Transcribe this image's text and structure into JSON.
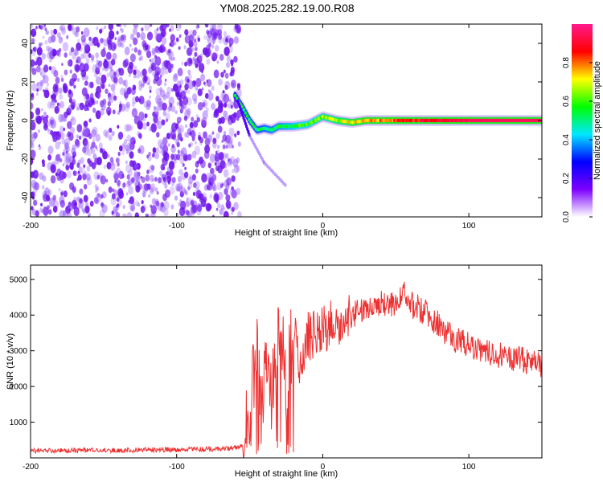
{
  "title": "YM08.2025.282.19.00.R08",
  "chart_data": [
    {
      "type": "heatmap",
      "xlabel": "Height of straight line (km)",
      "ylabel": "Frequency (Hz)",
      "xlim": [
        -200,
        150
      ],
      "ylim": [
        -50,
        50
      ],
      "xticks": [
        -200,
        -100,
        0,
        100
      ],
      "yticks": [
        -40,
        -20,
        0,
        20,
        40
      ],
      "colorbar": {
        "label": "Normalized spectral amplitude",
        "range": [
          0,
          1
        ],
        "ticks": [
          "0.0",
          "0.2",
          "0.4",
          "0.6",
          "0.8"
        ],
        "colors": [
          "#ffffff",
          "#7c00ff",
          "#0000ff",
          "#00e8ff",
          "#00ff00",
          "#ffff00",
          "#ff0000",
          "#ff1a8c"
        ]
      },
      "features": {
        "noise_region_x": [
          -200,
          -57
        ],
        "signal_track": [
          {
            "x": -60,
            "y": 13
          },
          {
            "x": -55,
            "y": 7
          },
          {
            "x": -50,
            "y": 0
          },
          {
            "x": -45,
            "y": -5
          },
          {
            "x": -40,
            "y": -4
          },
          {
            "x": -35,
            "y": -5
          },
          {
            "x": -30,
            "y": -3
          },
          {
            "x": -20,
            "y": -3
          },
          {
            "x": -10,
            "y": -2
          },
          {
            "x": 0,
            "y": 2
          },
          {
            "x": 10,
            "y": 0
          },
          {
            "x": 20,
            "y": -1
          },
          {
            "x": 30,
            "y": 0
          },
          {
            "x": 50,
            "y": 0
          },
          {
            "x": 100,
            "y": 0
          },
          {
            "x": 150,
            "y": 0
          }
        ],
        "side_branch": [
          {
            "x": -58,
            "y": 10
          },
          {
            "x": -50,
            "y": -8
          },
          {
            "x": -40,
            "y": -22
          },
          {
            "x": -25,
            "y": -34
          }
        ]
      }
    },
    {
      "type": "line",
      "xlabel": "Height of straight line (km)",
      "ylabel": "SNR (10 * v/v)",
      "xlim": [
        -200,
        150
      ],
      "ylim": [
        0,
        5400
      ],
      "xticks": [
        -200,
        -100,
        0,
        100
      ],
      "yticks": [
        1000,
        2000,
        3000,
        4000,
        5000
      ],
      "color": "#ee3030",
      "series": [
        {
          "x": [
            -200,
            -150,
            -100,
            -70,
            -55,
            -50,
            -45,
            -42,
            -40,
            -35,
            -30,
            -25,
            -20,
            -15,
            -10,
            0,
            10,
            20,
            30,
            40,
            50,
            56,
            60,
            70,
            80,
            90,
            100,
            110,
            120,
            130,
            140,
            150
          ],
          "values": [
            200,
            210,
            230,
            250,
            300,
            1600,
            3000,
            1000,
            2500,
            1800,
            3800,
            2200,
            3600,
            2600,
            3400,
            3600,
            3800,
            4000,
            4200,
            4300,
            4350,
            4700,
            4300,
            4100,
            3700,
            3300,
            3200,
            3000,
            2900,
            2800,
            2700,
            2600
          ]
        }
      ]
    }
  ]
}
